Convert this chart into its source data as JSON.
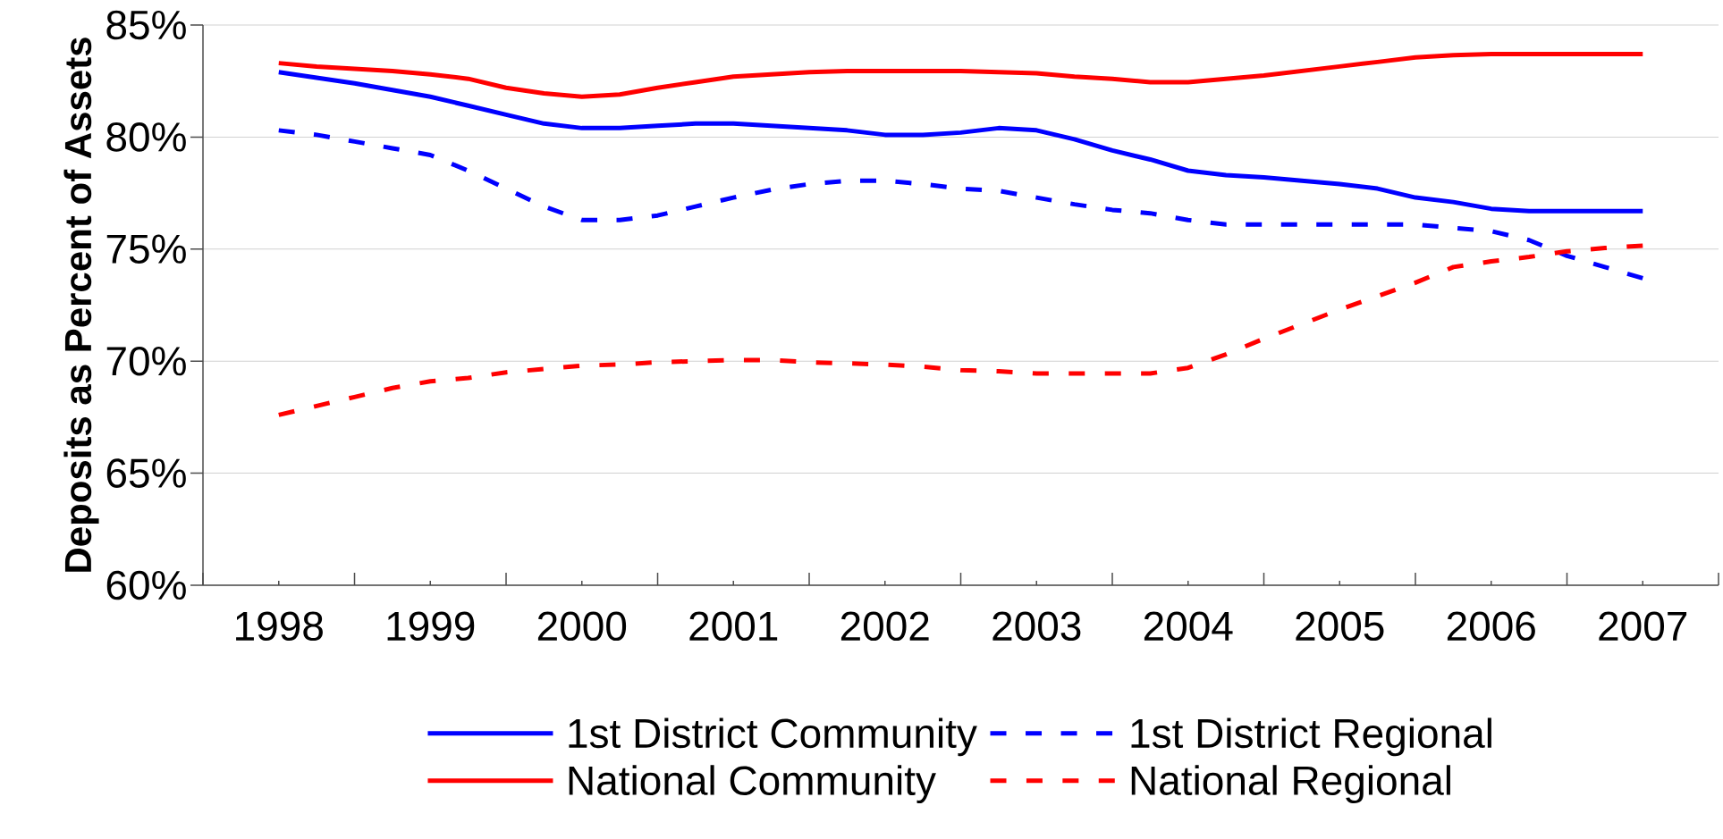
{
  "chart_data": {
    "type": "line",
    "ylabel": "Deposits as Percent of Assets",
    "x": [
      1998,
      1998.25,
      1998.5,
      1998.75,
      1999,
      1999.25,
      1999.5,
      1999.75,
      2000,
      2000.25,
      2000.5,
      2000.75,
      2001,
      2001.25,
      2001.5,
      2001.75,
      2002,
      2002.25,
      2002.5,
      2002.75,
      2003,
      2003.25,
      2003.5,
      2003.75,
      2004,
      2004.25,
      2004.5,
      2004.75,
      2005,
      2005.25,
      2005.5,
      2005.75,
      2006,
      2006.25,
      2006.5,
      2006.75,
      2007
    ],
    "series": [
      {
        "name": "1st District Community",
        "color": "#0000ff",
        "line_style": "solid",
        "values": [
          82.9,
          82.65,
          82.4,
          82.1,
          81.8,
          81.4,
          81.0,
          80.6,
          80.4,
          80.4,
          80.5,
          80.6,
          80.6,
          80.5,
          80.4,
          80.3,
          80.1,
          80.1,
          80.2,
          80.4,
          80.3,
          79.9,
          79.4,
          79.0,
          78.5,
          78.3,
          78.2,
          78.05,
          77.9,
          77.7,
          77.3,
          77.1,
          76.8,
          76.7,
          76.7,
          76.7,
          76.7
        ]
      },
      {
        "name": "1st District Regional",
        "color": "#0000ff",
        "line_style": "dashed",
        "values": [
          80.3,
          80.1,
          79.8,
          79.5,
          79.2,
          78.5,
          77.7,
          76.9,
          76.3,
          76.3,
          76.5,
          76.9,
          77.3,
          77.65,
          77.9,
          78.05,
          78.05,
          77.9,
          77.7,
          77.6,
          77.3,
          77.0,
          76.75,
          76.6,
          76.3,
          76.1,
          76.1,
          76.1,
          76.1,
          76.1,
          76.1,
          75.95,
          75.8,
          75.4,
          74.7,
          74.2,
          73.7
        ]
      },
      {
        "name": "National Community",
        "color": "#ff0000",
        "line_style": "solid",
        "values": [
          83.3,
          83.15,
          83.05,
          82.95,
          82.8,
          82.6,
          82.2,
          81.95,
          81.8,
          81.9,
          82.2,
          82.45,
          82.7,
          82.8,
          82.9,
          82.95,
          82.95,
          82.95,
          82.95,
          82.9,
          82.85,
          82.7,
          82.6,
          82.45,
          82.45,
          82.6,
          82.75,
          82.95,
          83.15,
          83.35,
          83.55,
          83.65,
          83.7,
          83.7,
          83.7,
          83.7,
          83.7
        ]
      },
      {
        "name": "National Regional",
        "color": "#ff0000",
        "line_style": "dashed",
        "values": [
          67.6,
          68.0,
          68.4,
          68.8,
          69.1,
          69.25,
          69.5,
          69.65,
          69.8,
          69.85,
          69.95,
          70.0,
          70.05,
          70.05,
          69.95,
          69.9,
          69.85,
          69.75,
          69.6,
          69.55,
          69.45,
          69.45,
          69.45,
          69.45,
          69.7,
          70.3,
          71.0,
          71.65,
          72.3,
          72.9,
          73.5,
          74.2,
          74.45,
          74.65,
          74.9,
          75.05,
          75.15
        ]
      }
    ],
    "xlim": [
      1997.5,
      2007.5
    ],
    "xticks": [
      {
        "value": 1997.5,
        "label": null
      },
      1998,
      {
        "value": 1998.5,
        "label": null
      },
      1999,
      {
        "value": 1999.5,
        "label": null
      },
      2000,
      {
        "value": 2000.5,
        "label": null
      },
      2001,
      {
        "value": 2001.5,
        "label": null
      },
      2002,
      {
        "value": 2002.5,
        "label": null
      },
      2003,
      {
        "value": 2003.5,
        "label": null
      },
      2004,
      {
        "value": 2004.5,
        "label": null
      },
      2005,
      {
        "value": 2005.5,
        "label": null
      },
      2006,
      {
        "value": 2006.5,
        "label": null
      },
      2007,
      {
        "value": 2007.5,
        "label": null
      }
    ],
    "ylim": [
      60,
      85
    ],
    "yticks": [
      {
        "value": 60,
        "label": "60%"
      },
      {
        "value": 65,
        "label": "65%"
      },
      {
        "value": 70,
        "label": "70%"
      },
      {
        "value": 75,
        "label": "75%"
      },
      {
        "value": 80,
        "label": "80%"
      },
      {
        "value": 85,
        "label": "85%"
      }
    ],
    "grid": "y",
    "legend": "bottom",
    "marker": "none"
  }
}
